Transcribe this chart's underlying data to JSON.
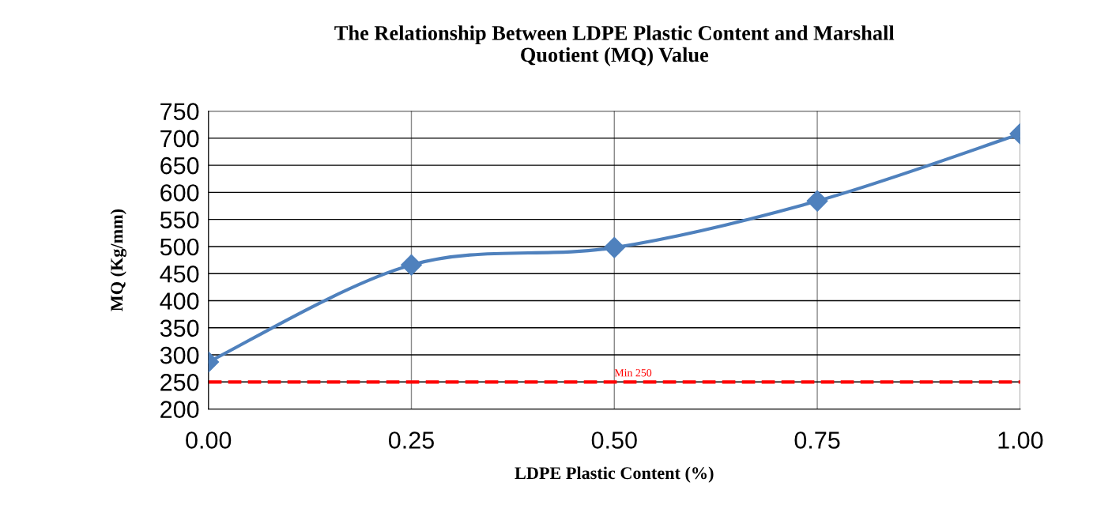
{
  "chart_data": {
    "type": "line",
    "title": "The Relationship Between LDPE Plastic Content and Marshall\nQuotient (MQ) Value",
    "xlabel": "LDPE Plastic Content (%)",
    "ylabel": "MQ (Kg/mm)",
    "x": [
      0,
      0.25,
      0.5,
      0.75,
      1.0
    ],
    "series": [
      {
        "color": "#4f81bd",
        "values": [
          287,
          466,
          498,
          584,
          708
        ]
      }
    ],
    "xlim": [
      0,
      1
    ],
    "xticks": [
      {
        "value": 0,
        "label": "0.00"
      },
      {
        "value": 0.25,
        "label": "0.25"
      },
      {
        "value": 0.5,
        "label": "0.50"
      },
      {
        "value": 0.75,
        "label": "0.75"
      },
      {
        "value": 1,
        "label": "1.00"
      }
    ],
    "ylim": [
      200,
      750
    ],
    "yticks": [
      200,
      250,
      300,
      350,
      400,
      450,
      500,
      550,
      600,
      650,
      700,
      750
    ],
    "ref_lines": [
      {
        "axis": "y",
        "value": 250,
        "label": "Min 250",
        "color": "#ff0000",
        "line_style": "dashed"
      }
    ],
    "grid": true,
    "marker": "diamond",
    "line_style": "solid",
    "legend": false
  }
}
